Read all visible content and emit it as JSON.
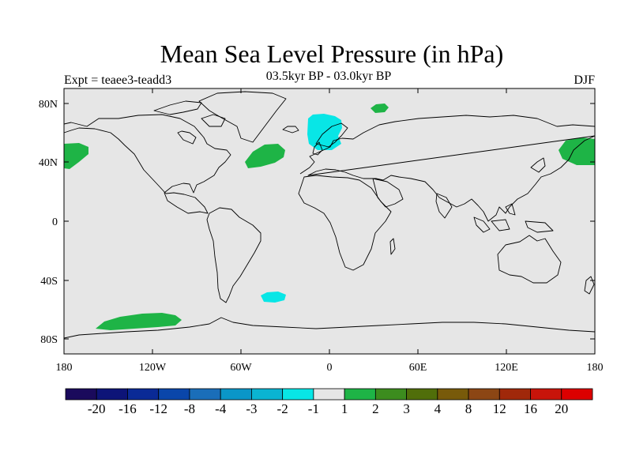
{
  "title": "Mean Sea Level Pressure (in hPa)",
  "subtitle_left": "Expt = teaee3-teadd3",
  "subtitle_center": "03.5kyr BP - 03.0kyr BP",
  "subtitle_right": "DJF",
  "map": {
    "projection": "cylindrical-equidistant",
    "lon_range": [
      -180,
      180
    ],
    "lat_range": [
      -90,
      90
    ],
    "background_color": "#e6e6e6",
    "lat_ticks": [
      {
        "value": 80,
        "label": "80N"
      },
      {
        "value": 40,
        "label": "40N"
      },
      {
        "value": 0,
        "label": "0"
      },
      {
        "value": -40,
        "label": "40S"
      },
      {
        "value": -80,
        "label": "80S"
      }
    ],
    "lon_ticks": [
      {
        "value": -180,
        "label": "180"
      },
      {
        "value": -120,
        "label": "120W"
      },
      {
        "value": -60,
        "label": "60W"
      },
      {
        "value": 0,
        "label": "0"
      },
      {
        "value": 60,
        "label": "60E"
      },
      {
        "value": 120,
        "label": "120E"
      },
      {
        "value": 180,
        "label": "180"
      }
    ]
  },
  "colorbar": {
    "colors": [
      "#1a0a5c",
      "#0d1478",
      "#0a2a96",
      "#0a46aa",
      "#1a6eb9",
      "#0a96c8",
      "#0ab4d2",
      "#08e6e6",
      "#e6e6e6",
      "#1eb446",
      "#3c8c1e",
      "#506e0a",
      "#785a0a",
      "#8c4614",
      "#a0280a",
      "#c8140a",
      "#dc0000"
    ],
    "labels": [
      "-20",
      "-16",
      "-12",
      "-8",
      "-4",
      "-3",
      "-2",
      "-1",
      "1",
      "2",
      "3",
      "4",
      "8",
      "12",
      "16",
      "20"
    ]
  }
}
